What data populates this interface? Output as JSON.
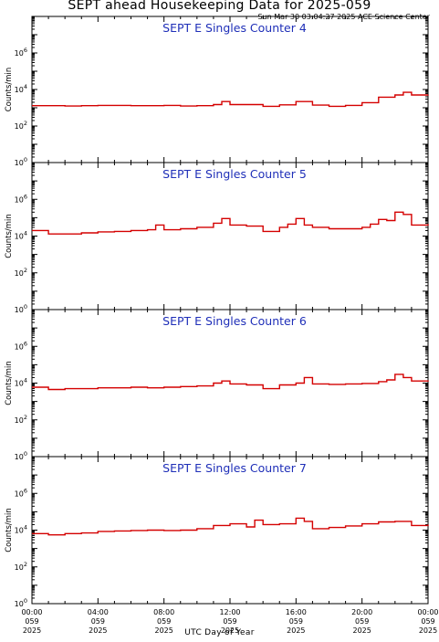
{
  "header": {
    "title": "SEPT ahead Housekeeping Data for 2025-059",
    "timestamp": "Sun Mar 30 03:04:27 2025 ACE Science Center"
  },
  "xaxis_label": "UTC Day of Year",
  "colors": {
    "line": "#d40000",
    "panel_title": "#1f2fb8"
  },
  "chart_data": [
    {
      "type": "line",
      "title": "SEPT E Singles Counter 4",
      "ylabel": "Counts/min",
      "yscale": "log",
      "ylim": [
        1,
        100000000
      ],
      "ytick_labels": [
        "10^0",
        "10^2",
        "10^4",
        "10^6"
      ],
      "x_ticks": [
        "00:00 059 2025",
        "04:00 059 2025",
        "08:00 059 2025",
        "12:00 059 2025",
        "16:00 059 2025",
        "20:00 059 2025",
        "00:00 059 2025"
      ],
      "xlim_hours": [
        0,
        24
      ],
      "series": [
        {
          "x_hours": [
            0,
            1,
            2,
            3,
            4,
            5,
            6,
            7,
            8,
            9,
            10,
            11,
            11.5,
            12,
            13,
            14,
            15,
            16,
            17,
            18,
            19,
            20,
            21,
            22,
            22.5,
            23,
            24
          ],
          "values": [
            1300,
            1300,
            1250,
            1300,
            1350,
            1350,
            1300,
            1300,
            1350,
            1250,
            1300,
            1500,
            2200,
            1500,
            1500,
            1200,
            1450,
            2200,
            1400,
            1200,
            1350,
            1900,
            3800,
            5000,
            7000,
            5000,
            5200
          ]
        }
      ]
    },
    {
      "type": "line",
      "title": "SEPT E Singles Counter 5",
      "ylabel": "Counts/min",
      "yscale": "log",
      "ylim": [
        1,
        100000000
      ],
      "ytick_labels": [
        "10^0",
        "10^2",
        "10^4",
        "10^6"
      ],
      "x_ticks": [
        "00:00 059 2025",
        "04:00 059 2025",
        "08:00 059 2025",
        "12:00 059 2025",
        "16:00 059 2025",
        "20:00 059 2025",
        "00:00 059 2025"
      ],
      "xlim_hours": [
        0,
        24
      ],
      "series": [
        {
          "x_hours": [
            0,
            1,
            2,
            3,
            4,
            5,
            6,
            7,
            7.5,
            8,
            9,
            10,
            11,
            11.5,
            12,
            13,
            14,
            15,
            15.5,
            16,
            16.5,
            17,
            18,
            19,
            20,
            20.5,
            21,
            21.5,
            22,
            22.5,
            23,
            24
          ],
          "values": [
            20000,
            13000,
            13000,
            15000,
            17000,
            18000,
            20000,
            22000,
            40000,
            22000,
            25000,
            30000,
            50000,
            90000,
            40000,
            35000,
            18000,
            30000,
            45000,
            90000,
            40000,
            30000,
            25000,
            25000,
            30000,
            45000,
            80000,
            70000,
            200000,
            150000,
            40000,
            45000
          ]
        }
      ]
    },
    {
      "type": "line",
      "title": "SEPT E Singles Counter 6",
      "ylabel": "Counts/min",
      "yscale": "log",
      "ylim": [
        1,
        100000000
      ],
      "ytick_labels": [
        "10^0",
        "10^2",
        "10^4",
        "10^6"
      ],
      "x_ticks": [
        "00:00 059 2025",
        "04:00 059 2025",
        "08:00 059 2025",
        "12:00 059 2025",
        "16:00 059 2025",
        "20:00 059 2025",
        "00:00 059 2025"
      ],
      "xlim_hours": [
        0,
        24
      ],
      "series": [
        {
          "x_hours": [
            0,
            1,
            2,
            3,
            4,
            5,
            6,
            7,
            8,
            9,
            10,
            11,
            11.5,
            12,
            13,
            14,
            15,
            16,
            16.5,
            17,
            18,
            19,
            20,
            21,
            21.5,
            22,
            22.5,
            23,
            24
          ],
          "values": [
            6000,
            4500,
            5000,
            5000,
            5500,
            5500,
            6000,
            5500,
            6000,
            6500,
            7000,
            10000,
            13000,
            9000,
            8000,
            5000,
            8000,
            10000,
            20000,
            9000,
            8500,
            9000,
            9500,
            12000,
            15000,
            30000,
            20000,
            13000,
            12000
          ]
        }
      ]
    },
    {
      "type": "line",
      "title": "SEPT E Singles Counter 7",
      "ylabel": "Counts/min",
      "yscale": "log",
      "ylim": [
        1,
        100000000
      ],
      "ytick_labels": [
        "10^0",
        "10^2",
        "10^4",
        "10^6"
      ],
      "x_ticks": [
        "00:00 059 2025",
        "04:00 059 2025",
        "08:00 059 2025",
        "12:00 059 2025",
        "16:00 059 2025",
        "20:00 059 2025",
        "00:00 059 2025"
      ],
      "xlim_hours": [
        0,
        24
      ],
      "series": [
        {
          "x_hours": [
            0,
            1,
            2,
            3,
            4,
            5,
            6,
            7,
            8,
            9,
            10,
            11,
            12,
            13,
            13.5,
            14,
            15,
            16,
            16.5,
            17,
            18,
            19,
            20,
            21,
            22,
            23,
            24
          ],
          "values": [
            6500,
            5500,
            6500,
            7000,
            8500,
            9000,
            9500,
            10000,
            9500,
            10000,
            12000,
            18000,
            22000,
            15000,
            35000,
            20000,
            22000,
            45000,
            30000,
            12000,
            14000,
            17000,
            22000,
            28000,
            30000,
            18000,
            20000
          ]
        }
      ]
    }
  ]
}
